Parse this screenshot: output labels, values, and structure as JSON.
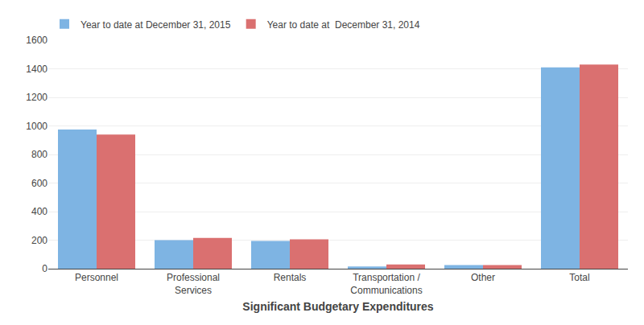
{
  "chart_data": {
    "type": "bar",
    "xlabel": "Significant Budgetary Expenditures",
    "categories": [
      "Personnel",
      "Professional\nServices",
      "Rentals",
      "Transportation /\nCommunications",
      "Other",
      "Total"
    ],
    "series": [
      {
        "name": "Year to date at December 31, 2015",
        "color": "#7EB4E3",
        "values": [
          975,
          200,
          195,
          15,
          25,
          1410
        ]
      },
      {
        "name": "Year to date at  December 31, 2014",
        "color": "#DA7070",
        "values": [
          940,
          215,
          205,
          30,
          25,
          1430
        ]
      }
    ],
    "ylim": [
      0,
      1600
    ],
    "yticks": [
      0,
      200,
      400,
      600,
      800,
      1000,
      1200,
      1400,
      1600
    ],
    "grid": true,
    "legend": "upper left"
  }
}
